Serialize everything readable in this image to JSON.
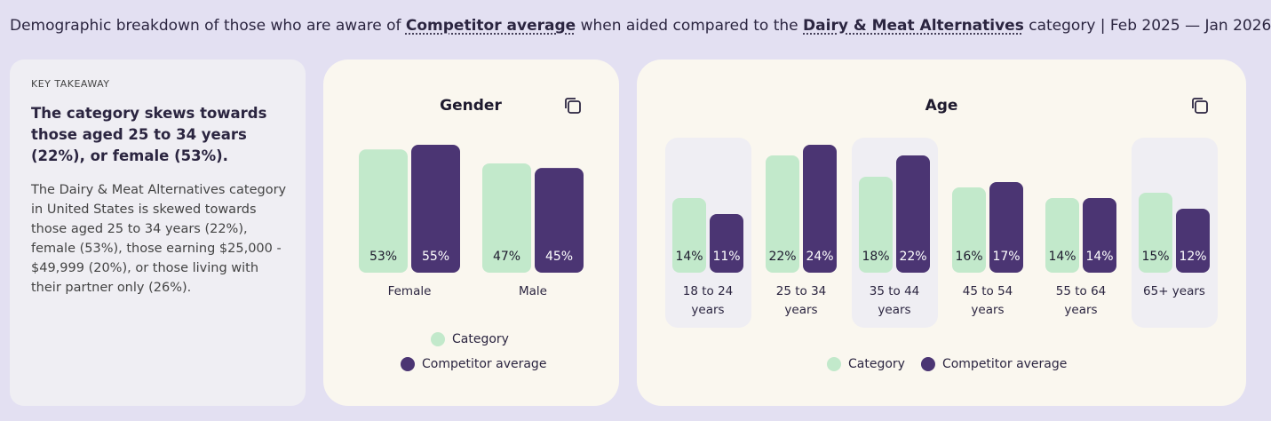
{
  "header": {
    "title_parts": [
      "Demographic breakdown of those who are aware of ",
      "Competitor average",
      " when aided compared to the ",
      "Dairy & Meat Alternatives",
      " category | Feb 2025 — Jan 2026"
    ]
  },
  "takeaway": {
    "label": "KEY TAKEAWAY",
    "heading": "The category skews towards those aged 25 to 34 years (22%), or female (53%).",
    "body": "The Dairy & Meat Alternatives category in United States is skewed towards those aged 25 to 34 years (22%), female (53%), those earning $25,000 - $49,999 (20%), or those living with their partner only (26%)."
  },
  "chart_data": [
    {
      "type": "bar",
      "title": "Gender",
      "categories": [
        "Female",
        "Male"
      ],
      "series": [
        {
          "name": "Category",
          "color": "#c2e9cb",
          "values": [
            53,
            47
          ],
          "value_labels": [
            "53%",
            "47%"
          ]
        },
        {
          "name": "Competitor average",
          "color": "#4b3573",
          "values": [
            55,
            45
          ],
          "value_labels": [
            "55%",
            "45%"
          ]
        }
      ]
    },
    {
      "type": "bar",
      "title": "Age",
      "categories": [
        "18 to 24 years",
        "25 to 34 years",
        "35 to 44 years",
        "45 to 54 years",
        "55 to 64 years",
        "65+ years"
      ],
      "series": [
        {
          "name": "Category",
          "color": "#c2e9cb",
          "values": [
            14,
            22,
            18,
            16,
            14,
            15
          ],
          "value_labels": [
            "14%",
            "22%",
            "18%",
            "16%",
            "14%",
            "15%"
          ]
        },
        {
          "name": "Competitor average",
          "color": "#4b3573",
          "values": [
            11,
            24,
            22,
            17,
            14,
            12
          ],
          "value_labels": [
            "11%",
            "24%",
            "22%",
            "17%",
            "14%",
            "12%"
          ]
        }
      ]
    }
  ]
}
